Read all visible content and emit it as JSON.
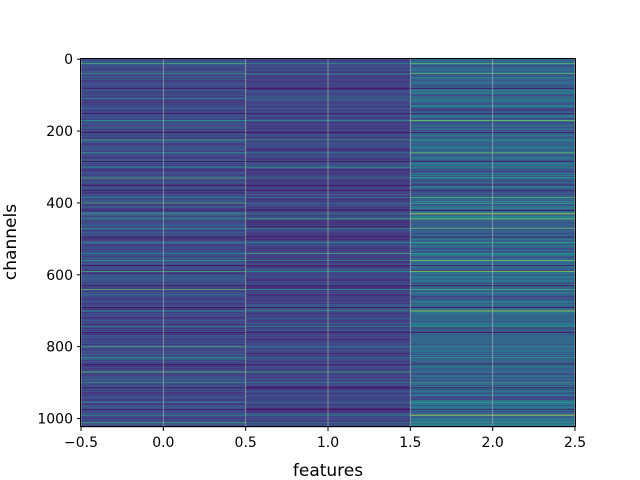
{
  "chart_data": {
    "type": "heatmap",
    "xlabel": "features",
    "ylabel": "channels",
    "xlim": [
      -0.5,
      2.5
    ],
    "ylim": [
      1023.5,
      -0.5
    ],
    "columns": [
      0,
      1,
      2
    ],
    "rows": 1024,
    "colormap": "viridis",
    "grid": true,
    "x_ticks": [
      "−0.5",
      "0.0",
      "0.5",
      "1.0",
      "1.5",
      "2.0",
      "2.5"
    ],
    "y_ticks": [
      "0",
      "200",
      "400",
      "600",
      "800",
      "1000"
    ],
    "column_means": [
      0.28,
      0.25,
      0.4
    ],
    "column_spread": [
      0.22,
      0.2,
      0.35
    ],
    "bright_channels": [
      12,
      40,
      110,
      170,
      225,
      260,
      300,
      330,
      385,
      400,
      430,
      445,
      470,
      510,
      540,
      560,
      590,
      640,
      700,
      745,
      800,
      830,
      870,
      900,
      955,
      990,
      1010
    ],
    "dark_channels": [
      80,
      150,
      205,
      285,
      350,
      365,
      420,
      495,
      575,
      630,
      690,
      760,
      850,
      915,
      975
    ]
  },
  "colors": {
    "viridis_low": "#440154",
    "viridis_mid": "#21918c",
    "viridis_high": "#fde725",
    "grid": "#b0b0b0"
  }
}
